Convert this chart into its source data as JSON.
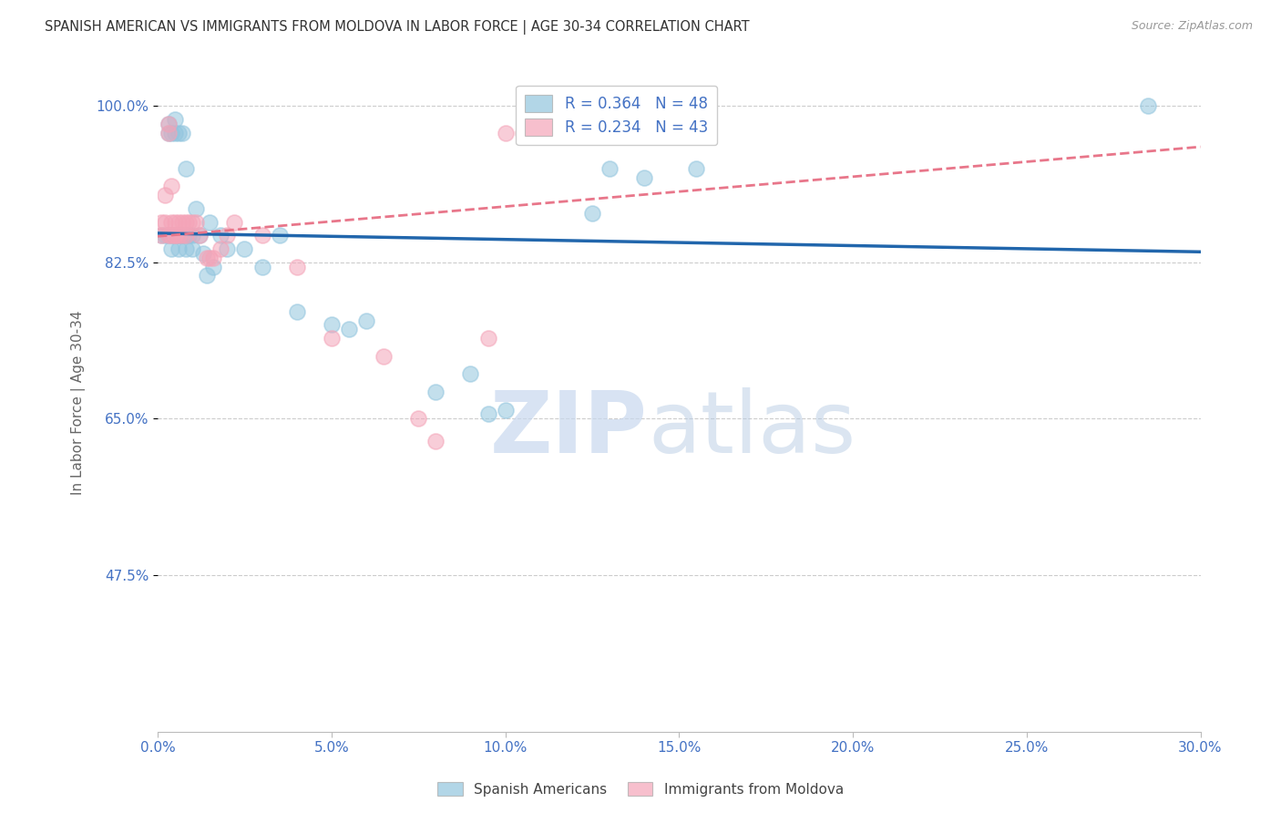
{
  "title": "SPANISH AMERICAN VS IMMIGRANTS FROM MOLDOVA IN LABOR FORCE | AGE 30-34 CORRELATION CHART",
  "source": "Source: ZipAtlas.com",
  "ylabel": "In Labor Force | Age 30-34",
  "xlim": [
    0.0,
    0.3
  ],
  "ylim": [
    0.3,
    1.035
  ],
  "xtick_labels": [
    "0.0%",
    "5.0%",
    "10.0%",
    "15.0%",
    "20.0%",
    "25.0%",
    "30.0%"
  ],
  "xtick_values": [
    0.0,
    0.05,
    0.1,
    0.15,
    0.2,
    0.25,
    0.3
  ],
  "ytick_labels": [
    "100.0%",
    "82.5%",
    "65.0%",
    "47.5%"
  ],
  "ytick_values": [
    1.0,
    0.825,
    0.65,
    0.475
  ],
  "watermark_zip": "ZIP",
  "watermark_atlas": "atlas",
  "blue_color": "#92c5de",
  "pink_color": "#f4a4b8",
  "blue_line_color": "#2166ac",
  "pink_line_color": "#e8768a",
  "R_blue": 0.364,
  "N_blue": 48,
  "R_pink": 0.234,
  "N_pink": 43,
  "legend_label_blue": "Spanish Americans",
  "legend_label_pink": "Immigrants from Moldova",
  "blue_scatter_x": [
    0.001,
    0.002,
    0.003,
    0.003,
    0.003,
    0.004,
    0.004,
    0.004,
    0.005,
    0.005,
    0.005,
    0.006,
    0.006,
    0.006,
    0.006,
    0.007,
    0.007,
    0.007,
    0.008,
    0.008,
    0.008,
    0.009,
    0.01,
    0.01,
    0.011,
    0.012,
    0.013,
    0.014,
    0.015,
    0.016,
    0.018,
    0.02,
    0.025,
    0.03,
    0.035,
    0.04,
    0.05,
    0.055,
    0.06,
    0.08,
    0.09,
    0.095,
    0.1,
    0.125,
    0.13,
    0.14,
    0.155,
    0.285
  ],
  "blue_scatter_y": [
    0.855,
    0.855,
    0.855,
    0.97,
    0.98,
    0.855,
    0.84,
    0.97,
    0.855,
    0.97,
    0.985,
    0.855,
    0.84,
    0.855,
    0.97,
    0.855,
    0.855,
    0.97,
    0.855,
    0.84,
    0.93,
    0.855,
    0.855,
    0.84,
    0.885,
    0.855,
    0.835,
    0.81,
    0.87,
    0.82,
    0.855,
    0.84,
    0.84,
    0.82,
    0.855,
    0.77,
    0.755,
    0.75,
    0.76,
    0.68,
    0.7,
    0.655,
    0.66,
    0.88,
    0.93,
    0.92,
    0.93,
    1.0
  ],
  "pink_scatter_x": [
    0.001,
    0.001,
    0.002,
    0.002,
    0.003,
    0.003,
    0.003,
    0.004,
    0.004,
    0.004,
    0.005,
    0.005,
    0.005,
    0.006,
    0.006,
    0.007,
    0.007,
    0.008,
    0.008,
    0.009,
    0.01,
    0.011,
    0.012,
    0.014,
    0.015,
    0.016,
    0.018,
    0.02,
    0.022,
    0.03,
    0.04,
    0.05,
    0.065,
    0.075,
    0.08,
    0.095,
    0.1,
    0.105,
    0.11,
    0.115,
    0.12,
    0.125,
    0.13
  ],
  "pink_scatter_y": [
    0.855,
    0.87,
    0.9,
    0.87,
    0.97,
    0.98,
    0.855,
    0.855,
    0.87,
    0.91,
    0.855,
    0.87,
    0.855,
    0.855,
    0.87,
    0.855,
    0.87,
    0.855,
    0.87,
    0.87,
    0.87,
    0.87,
    0.855,
    0.83,
    0.83,
    0.83,
    0.84,
    0.855,
    0.87,
    0.855,
    0.82,
    0.74,
    0.72,
    0.65,
    0.625,
    0.74,
    0.97,
    0.97,
    0.975,
    0.985,
    0.98,
    0.99,
    0.985
  ],
  "grid_color": "#cccccc",
  "background_color": "#ffffff",
  "title_color": "#333333",
  "axis_label_color": "#666666",
  "tick_label_color": "#4472c4",
  "source_color": "#999999"
}
